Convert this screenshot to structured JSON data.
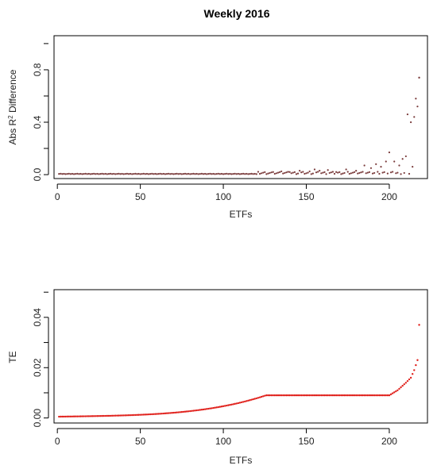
{
  "figure": {
    "title": "Weekly 2016"
  },
  "chart_data": [
    {
      "type": "scatter",
      "xlabel": "ETFs",
      "ylabel_main": "Abs R",
      "ylabel_sup": "2",
      "ylabel_rest": " Difference",
      "xlim": [
        -2,
        223
      ],
      "ylim": [
        -0.03,
        1.06
      ],
      "xticks": [
        0,
        50,
        100,
        150,
        200
      ],
      "yticks": [
        0.0,
        0.4,
        0.8
      ],
      "ytick_labels": [
        "0.0",
        "0.4",
        "0.8"
      ],
      "marker_color": "#7a3b3b",
      "grid": false,
      "n_points": 217,
      "baseline_until": 120,
      "baseline_value": 0.004,
      "outliers": [
        {
          "x": 130,
          "y": 0.02
        },
        {
          "x": 135,
          "y": 0.025
        },
        {
          "x": 140,
          "y": 0.02
        },
        {
          "x": 146,
          "y": 0.03
        },
        {
          "x": 152,
          "y": 0.025
        },
        {
          "x": 155,
          "y": 0.04
        },
        {
          "x": 158,
          "y": 0.03
        },
        {
          "x": 163,
          "y": 0.035
        },
        {
          "x": 168,
          "y": 0.02
        },
        {
          "x": 174,
          "y": 0.04
        },
        {
          "x": 180,
          "y": 0.03
        },
        {
          "x": 185,
          "y": 0.07
        },
        {
          "x": 189,
          "y": 0.05
        },
        {
          "x": 192,
          "y": 0.08
        },
        {
          "x": 195,
          "y": 0.06
        },
        {
          "x": 198,
          "y": 0.1
        },
        {
          "x": 200,
          "y": 0.17
        },
        {
          "x": 203,
          "y": 0.1
        },
        {
          "x": 206,
          "y": 0.07
        },
        {
          "x": 208,
          "y": 0.12
        },
        {
          "x": 210,
          "y": 0.14
        },
        {
          "x": 211,
          "y": 0.46
        },
        {
          "x": 213,
          "y": 0.4
        },
        {
          "x": 214,
          "y": 0.06
        },
        {
          "x": 215,
          "y": 0.44
        },
        {
          "x": 216,
          "y": 0.58
        },
        {
          "x": 217,
          "y": 0.52
        },
        {
          "x": 218,
          "y": 0.74
        }
      ]
    },
    {
      "type": "scatter",
      "xlabel": "ETFs",
      "ylabel": "TE",
      "xlim": [
        -2,
        223
      ],
      "ylim": [
        -0.002,
        0.051
      ],
      "xticks": [
        0,
        50,
        100,
        150,
        200
      ],
      "yticks": [
        0.0,
        0.02,
        0.04
      ],
      "ytick_labels": [
        "0.00",
        "0.02",
        "0.04"
      ],
      "marker_color": "#e0201b",
      "grid": false,
      "n_points": 217,
      "y_start": 0.0005,
      "y_mid": 0.0015,
      "curve_max": 0.037,
      "curve_tail": [
        {
          "x": 200,
          "y": 0.009
        },
        {
          "x": 205,
          "y": 0.011
        },
        {
          "x": 210,
          "y": 0.014
        },
        {
          "x": 213,
          "y": 0.016
        },
        {
          "x": 215,
          "y": 0.019
        },
        {
          "x": 216,
          "y": 0.021
        },
        {
          "x": 217,
          "y": 0.023
        },
        {
          "x": 218,
          "y": 0.037
        }
      ]
    }
  ]
}
